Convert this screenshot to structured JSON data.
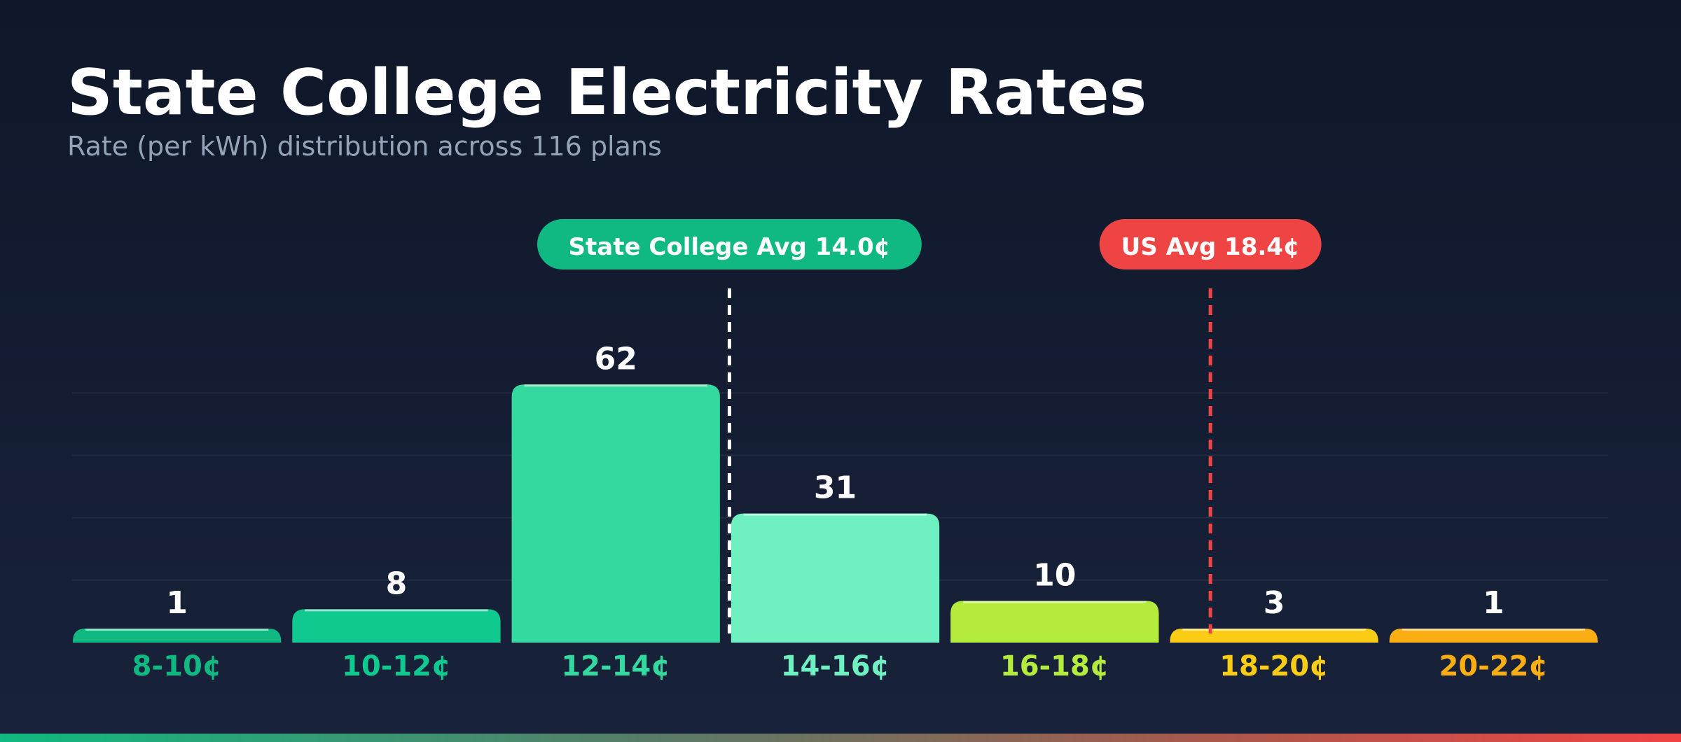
{
  "chart_data": {
    "type": "bar",
    "title": "State College Electricity Rates",
    "subtitle": "Rate (per kWh) distribution across 116 plans",
    "categories": [
      "8-10¢",
      "10-12¢",
      "12-14¢",
      "14-16¢",
      "16-18¢",
      "18-20¢",
      "20-22¢"
    ],
    "values": [
      1,
      8,
      62,
      31,
      10,
      3,
      1
    ],
    "bar_colors": [
      "#10b981",
      "#10c98f",
      "#34d9a0",
      "#6ef0c0",
      "#b3ec3d",
      "#facc15",
      "#fbad14"
    ],
    "ylim": [
      0,
      75
    ],
    "grid": true,
    "reference_lines": [
      {
        "label": "State College Avg 14.0¢",
        "value": 14.0,
        "color": "#10b981",
        "line_color": "#ffffff"
      },
      {
        "label": "US Avg 18.4¢",
        "value": 18.4,
        "color": "#ef4444",
        "line_color": "#ef4444"
      }
    ],
    "x_range": [
      8,
      22
    ]
  }
}
